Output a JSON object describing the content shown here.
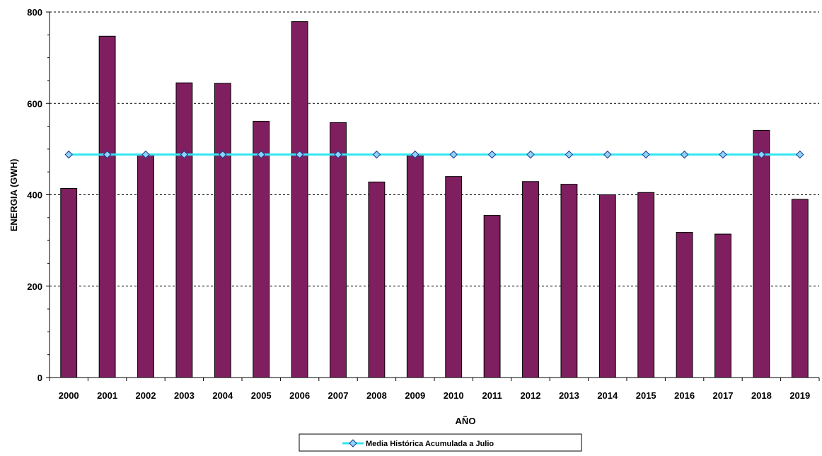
{
  "chart_data": {
    "type": "bar",
    "xlabel": "AÑO",
    "ylabel": "ENERGIA (GWH)",
    "categories": [
      "2000",
      "2001",
      "2002",
      "2003",
      "2004",
      "2005",
      "2006",
      "2007",
      "2008",
      "2009",
      "2010",
      "2011",
      "2012",
      "2013",
      "2014",
      "2015",
      "2016",
      "2017",
      "2018",
      "2019"
    ],
    "series": [
      {
        "type": "bar",
        "values": [
          414,
          747,
          488,
          645,
          644,
          561,
          779,
          558,
          428,
          486,
          440,
          355,
          429,
          423,
          400,
          405,
          318,
          314,
          541,
          390
        ],
        "color": "#7f1f5f"
      },
      {
        "type": "line",
        "name": "Media Histórica Acumulada a Julio",
        "values": [
          488,
          488,
          488,
          488,
          488,
          488,
          488,
          488,
          488,
          488,
          488,
          488,
          488,
          488,
          488,
          488,
          488,
          488,
          488,
          488
        ],
        "color": "#33e6f2",
        "marker": "diamond",
        "marker_color": "#8fd4ff"
      }
    ],
    "ylim": [
      0,
      800
    ],
    "yticks": [
      0,
      200,
      400,
      600,
      800
    ],
    "grid": "horizontal-dashed",
    "legend_position": "bottom-center"
  }
}
